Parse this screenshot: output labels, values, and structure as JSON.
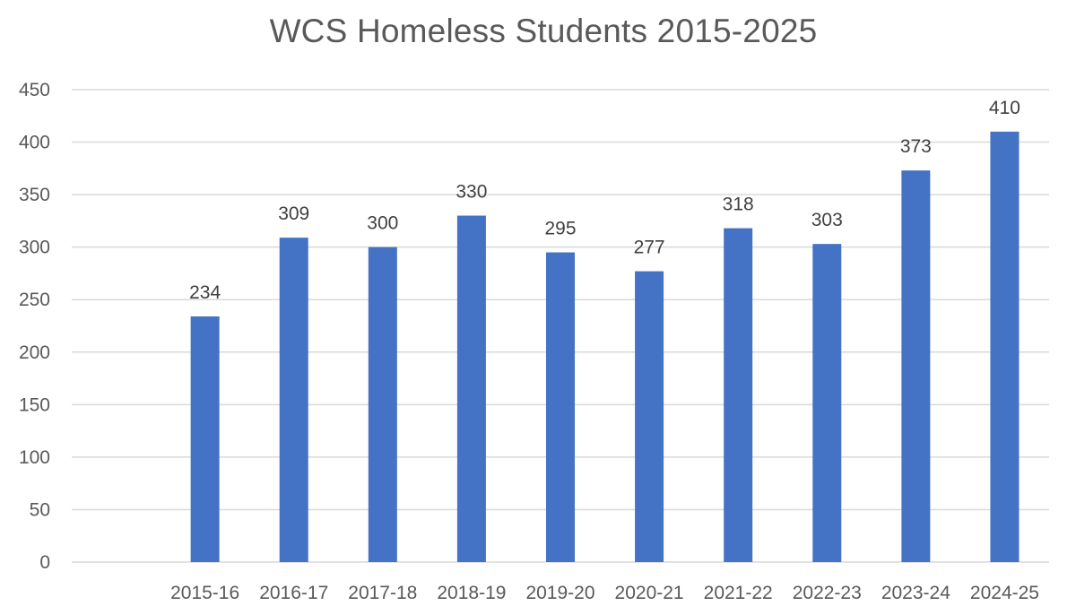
{
  "chart_data": {
    "type": "bar",
    "title": "WCS Homeless Students 2015-2025",
    "categories": [
      "",
      "2015-16",
      "2016-17",
      "2017-18",
      "2018-19",
      "2019-20",
      "2020-21",
      "2021-22",
      "2022-23",
      "2023-24",
      "2024-25"
    ],
    "values": [
      null,
      234,
      309,
      300,
      330,
      295,
      277,
      318,
      303,
      373,
      410
    ],
    "data_labels": [
      "",
      "234",
      "309",
      "300",
      "330",
      "295",
      "277",
      "318",
      "303",
      "373",
      "410"
    ],
    "xlabel": "",
    "ylabel": "",
    "ylim": [
      0,
      450
    ],
    "yticks": [
      "0",
      "50",
      "100",
      "150",
      "200",
      "250",
      "300",
      "350",
      "400",
      "450"
    ],
    "grid": true,
    "legend": "none",
    "bar_color": "#4472c4"
  }
}
